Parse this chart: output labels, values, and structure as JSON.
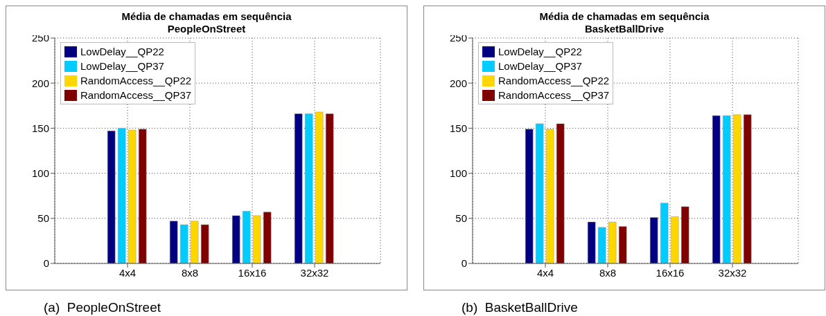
{
  "chart_data": [
    {
      "type": "bar",
      "title": "Média de chamadas em sequência",
      "subtitle": "PeopleOnStreet",
      "categories": [
        "4x4",
        "8x8",
        "16x16",
        "32x32"
      ],
      "series": [
        {
          "name": "LowDelay__QP22",
          "color": "#000080",
          "values": [
            147,
            47,
            53,
            166
          ]
        },
        {
          "name": "LowDelay__QP37",
          "color": "#00ccff",
          "values": [
            150,
            43,
            58,
            166
          ]
        },
        {
          "name": "RandomAccess__QP22",
          "color": "#ffd700",
          "values": [
            148,
            47,
            53,
            168
          ]
        },
        {
          "name": "RandomAccess__QP37",
          "color": "#800000",
          "values": [
            149,
            43,
            57,
            166
          ]
        }
      ],
      "ylim": [
        0,
        250
      ],
      "yticks": [
        0,
        50,
        100,
        150,
        200,
        250
      ],
      "grid": true,
      "legend": "top left",
      "annotations": [
        "(a)  PeopleOnStreet"
      ]
    },
    {
      "type": "bar",
      "title": "Média de chamadas em sequência",
      "subtitle": "BasketBallDrive",
      "categories": [
        "4x4",
        "8x8",
        "16x16",
        "32x32"
      ],
      "series": [
        {
          "name": "LowDelay__QP22",
          "color": "#000080",
          "values": [
            149,
            46,
            51,
            164
          ]
        },
        {
          "name": "LowDelay__QP37",
          "color": "#00ccff",
          "values": [
            155,
            40,
            67,
            164
          ]
        },
        {
          "name": "RandomAccess__QP22",
          "color": "#ffd700",
          "values": [
            149,
            46,
            52,
            165
          ]
        },
        {
          "name": "RandomAccess__QP37",
          "color": "#800000",
          "values": [
            155,
            41,
            63,
            165
          ]
        }
      ],
      "ylim": [
        0,
        250
      ],
      "yticks": [
        0,
        50,
        100,
        150,
        200,
        250
      ],
      "grid": true,
      "legend": "top left",
      "annotations": [
        "(b)  BasketBallDrive"
      ]
    }
  ]
}
